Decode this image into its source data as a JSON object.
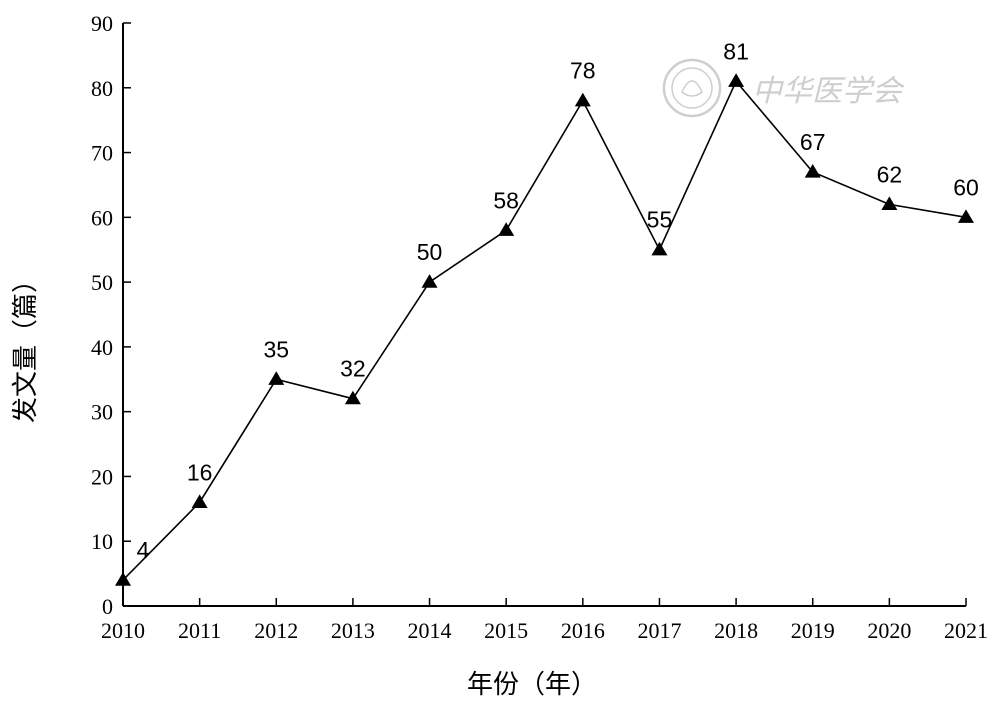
{
  "chart_data": {
    "type": "line",
    "title": "",
    "xlabel": "年份（年）",
    "ylabel": "发文量（篇）",
    "categories": [
      "2010",
      "2011",
      "2012",
      "2013",
      "2014",
      "2015",
      "2016",
      "2017",
      "2018",
      "2019",
      "2020",
      "2021"
    ],
    "series": [
      {
        "values": [
          4,
          16,
          35,
          32,
          50,
          58,
          78,
          55,
          81,
          67,
          62,
          60
        ],
        "marker": "triangle",
        "color": "#000000"
      }
    ],
    "ylim": [
      0,
      90
    ],
    "yticks": [
      0,
      10,
      20,
      30,
      40,
      50,
      60,
      70,
      80,
      90
    ],
    "grid": false,
    "data_labels": true,
    "legend": "none"
  },
  "watermark": {
    "text": "中华医学会",
    "icon": "society-seal-icon",
    "color": "#c9c9c9"
  }
}
